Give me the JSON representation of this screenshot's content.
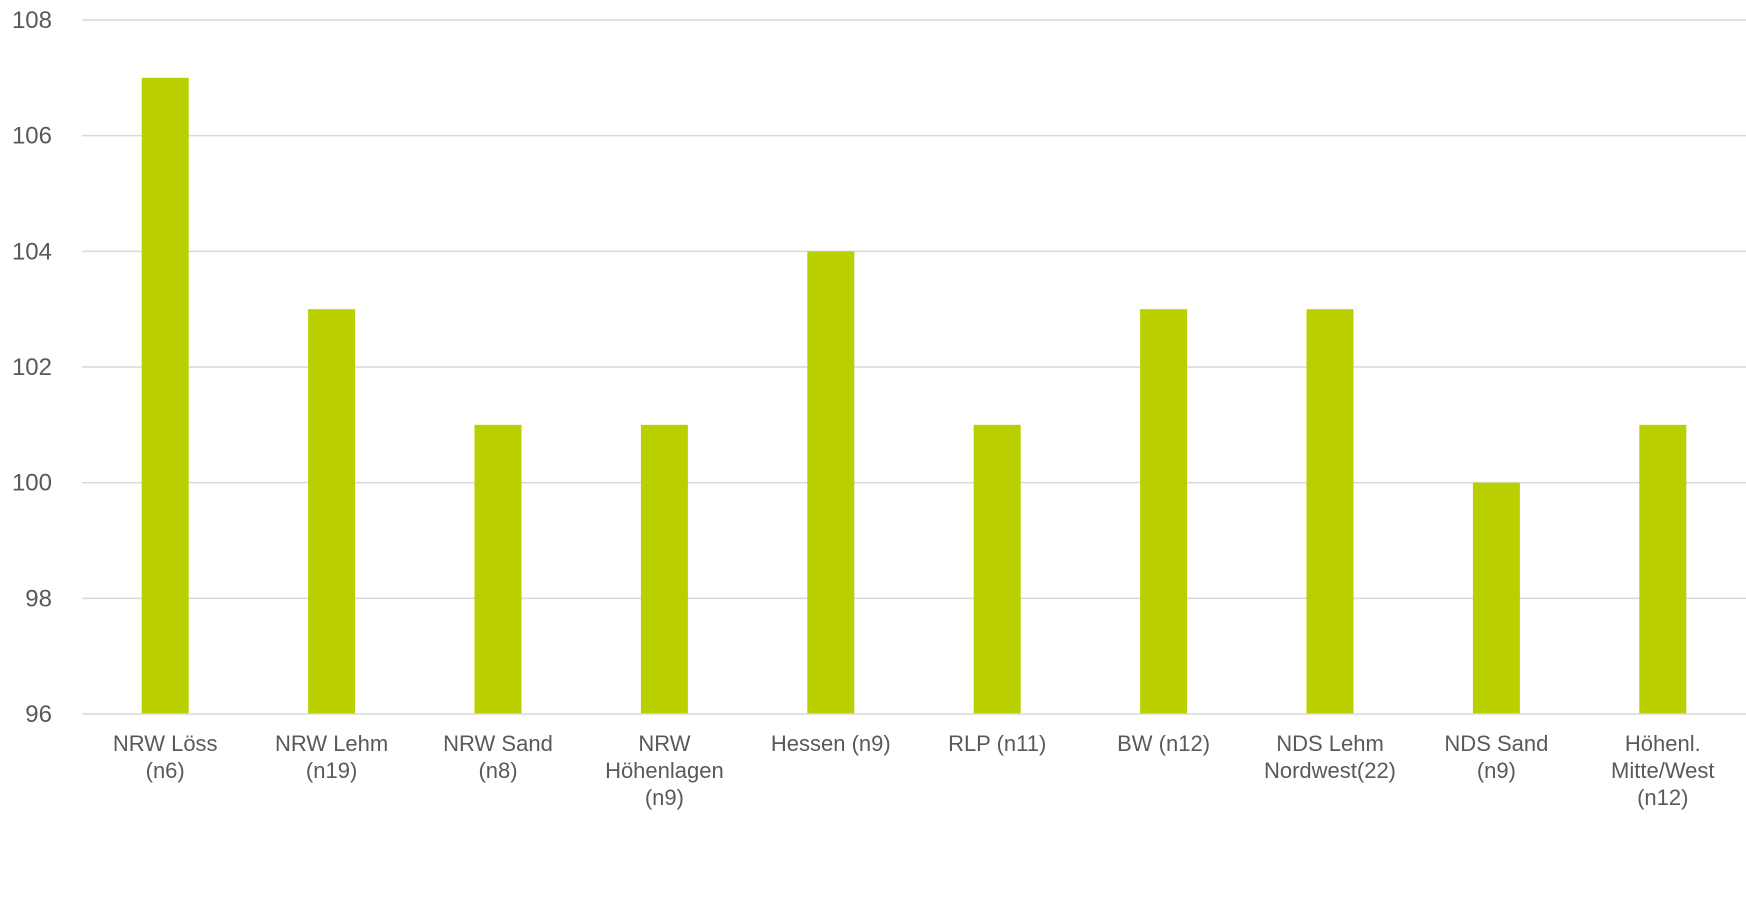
{
  "chart_data": {
    "type": "bar",
    "title": "",
    "xlabel": "",
    "ylabel": "",
    "categories": [
      [
        "NRW Löss",
        "(n6)"
      ],
      [
        "NRW Lehm",
        "(n19)"
      ],
      [
        "NRW Sand",
        "(n8)"
      ],
      [
        "NRW",
        "Höhenlagen",
        "(n9)"
      ],
      [
        "Hessen (n9)"
      ],
      [
        "RLP (n11)"
      ],
      [
        "BW (n12)"
      ],
      [
        "NDS Lehm",
        "Nordwest(22)"
      ],
      [
        "NDS Sand",
        "(n9)"
      ],
      [
        "Höhenl.",
        "Mitte/West",
        "(n12)"
      ]
    ],
    "values": [
      107,
      103,
      101,
      101,
      104,
      101,
      103,
      103,
      100,
      101
    ],
    "ylim": [
      96,
      108
    ],
    "yticks": [
      96,
      98,
      100,
      102,
      104,
      106,
      108
    ],
    "grid": true,
    "legend": false,
    "bar_color": "#b9cf00",
    "grid_color": "#d9d9d9",
    "axis_color": "#d9d9d9",
    "label_color": "#595959"
  }
}
